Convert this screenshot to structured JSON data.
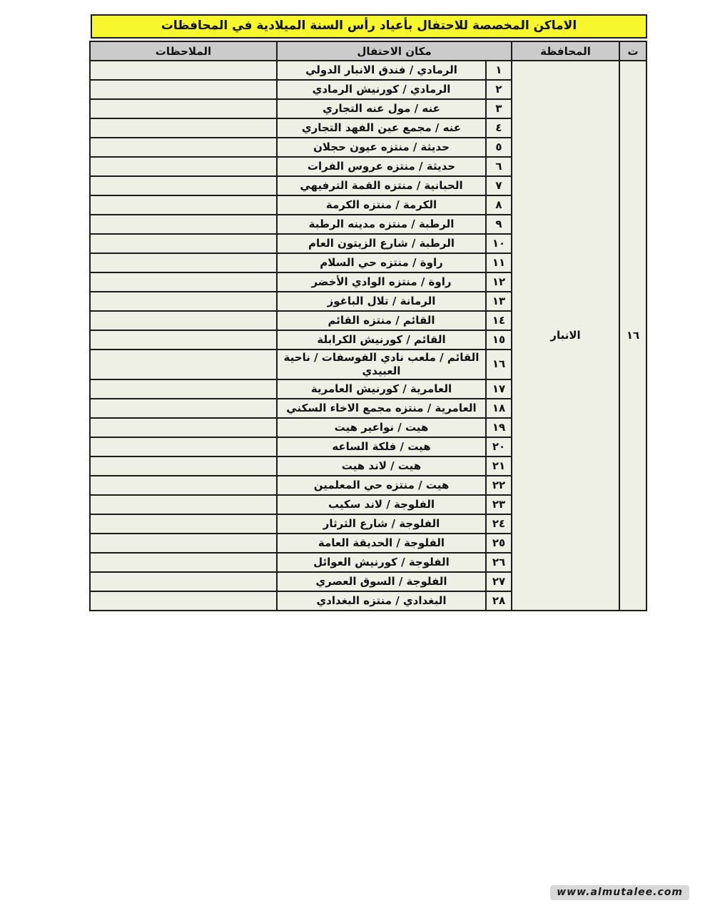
{
  "page": {
    "title": "الاماكن المخصصة للاحتفال بأعياد رأس السنة الميلادية في المحافظات",
    "watermark": "www.almutalee.com"
  },
  "colors": {
    "title_bg": "#f7f72e",
    "header_bg": "#cbcbcb",
    "cell_bg": "#eef0e6",
    "border": "#1b1b1b",
    "page_bg": "#ffffff",
    "watermark_bg": "#d8d8d8"
  },
  "table": {
    "headers": {
      "serial": "ت",
      "governorate": "المحافظة",
      "place": "مكان الاحتفال",
      "notes": "الملاحظات"
    },
    "governorate_serial": "١٦",
    "governorate_name": "الانبار",
    "rows": [
      {
        "no": "١",
        "place": "الرمادي / فندق الانبار الدولي",
        "notes": ""
      },
      {
        "no": "٢",
        "place": "الرمادي / كورنيش الرمادي",
        "notes": ""
      },
      {
        "no": "٣",
        "place": "عنه / مول عنه التجاري",
        "notes": ""
      },
      {
        "no": "٤",
        "place": "عنه / مجمع عين الفهد التجاري",
        "notes": ""
      },
      {
        "no": "٥",
        "place": "حديثة / منتزه عيون حجلان",
        "notes": ""
      },
      {
        "no": "٦",
        "place": "حديثة / منتزه عروس الفرات",
        "notes": ""
      },
      {
        "no": "٧",
        "place": "الحبانية / منتزه القمة الترفيهي",
        "notes": ""
      },
      {
        "no": "٨",
        "place": "الكرمة / منتزه الكرمة",
        "notes": ""
      },
      {
        "no": "٩",
        "place": "الرطبة / منتزه مدينه الرطبة",
        "notes": ""
      },
      {
        "no": "١٠",
        "place": "الرطبة / شارع الزيتون العام",
        "notes": ""
      },
      {
        "no": "١١",
        "place": "راوة / منتزه حي السلام",
        "notes": ""
      },
      {
        "no": "١٢",
        "place": "راوة / منتزه الوادي الأخضر",
        "notes": ""
      },
      {
        "no": "١٣",
        "place": "الرمانة / تلال الباغوز",
        "notes": ""
      },
      {
        "no": "١٤",
        "place": "القائم / منتزه القائم",
        "notes": ""
      },
      {
        "no": "١٥",
        "place": "القائم / كورنيش الكرابلة",
        "notes": ""
      },
      {
        "no": "١٦",
        "place": "القائم / ملعب نادي الفوسفات / ناحية العبيدي",
        "notes": ""
      },
      {
        "no": "١٧",
        "place": "العامرية / كورنيش العامرية",
        "notes": ""
      },
      {
        "no": "١٨",
        "place": "العامرية / منتزه مجمع الاخاء السكني",
        "notes": ""
      },
      {
        "no": "١٩",
        "place": "هيت / نواعير هيت",
        "notes": ""
      },
      {
        "no": "٢٠",
        "place": "هيت / فلكة الساعه",
        "notes": ""
      },
      {
        "no": "٢١",
        "place": "هيت / لاند هيت",
        "notes": ""
      },
      {
        "no": "٢٢",
        "place": "هيت / منتزه حي المعلمين",
        "notes": ""
      },
      {
        "no": "٢٣",
        "place": "الفلوجة / لاند سكيب",
        "notes": ""
      },
      {
        "no": "٢٤",
        "place": "الفلوجة / شارع الثرثار",
        "notes": ""
      },
      {
        "no": "٢٥",
        "place": "الفلوجة / الحديقة العامة",
        "notes": ""
      },
      {
        "no": "٢٦",
        "place": "الفلوجة / كورنيش العوائل",
        "notes": ""
      },
      {
        "no": "٢٧",
        "place": "الفلوجة / السوق العصري",
        "notes": ""
      },
      {
        "no": "٢٨",
        "place": "البغدادي / منتزه البغدادي",
        "notes": ""
      }
    ]
  }
}
